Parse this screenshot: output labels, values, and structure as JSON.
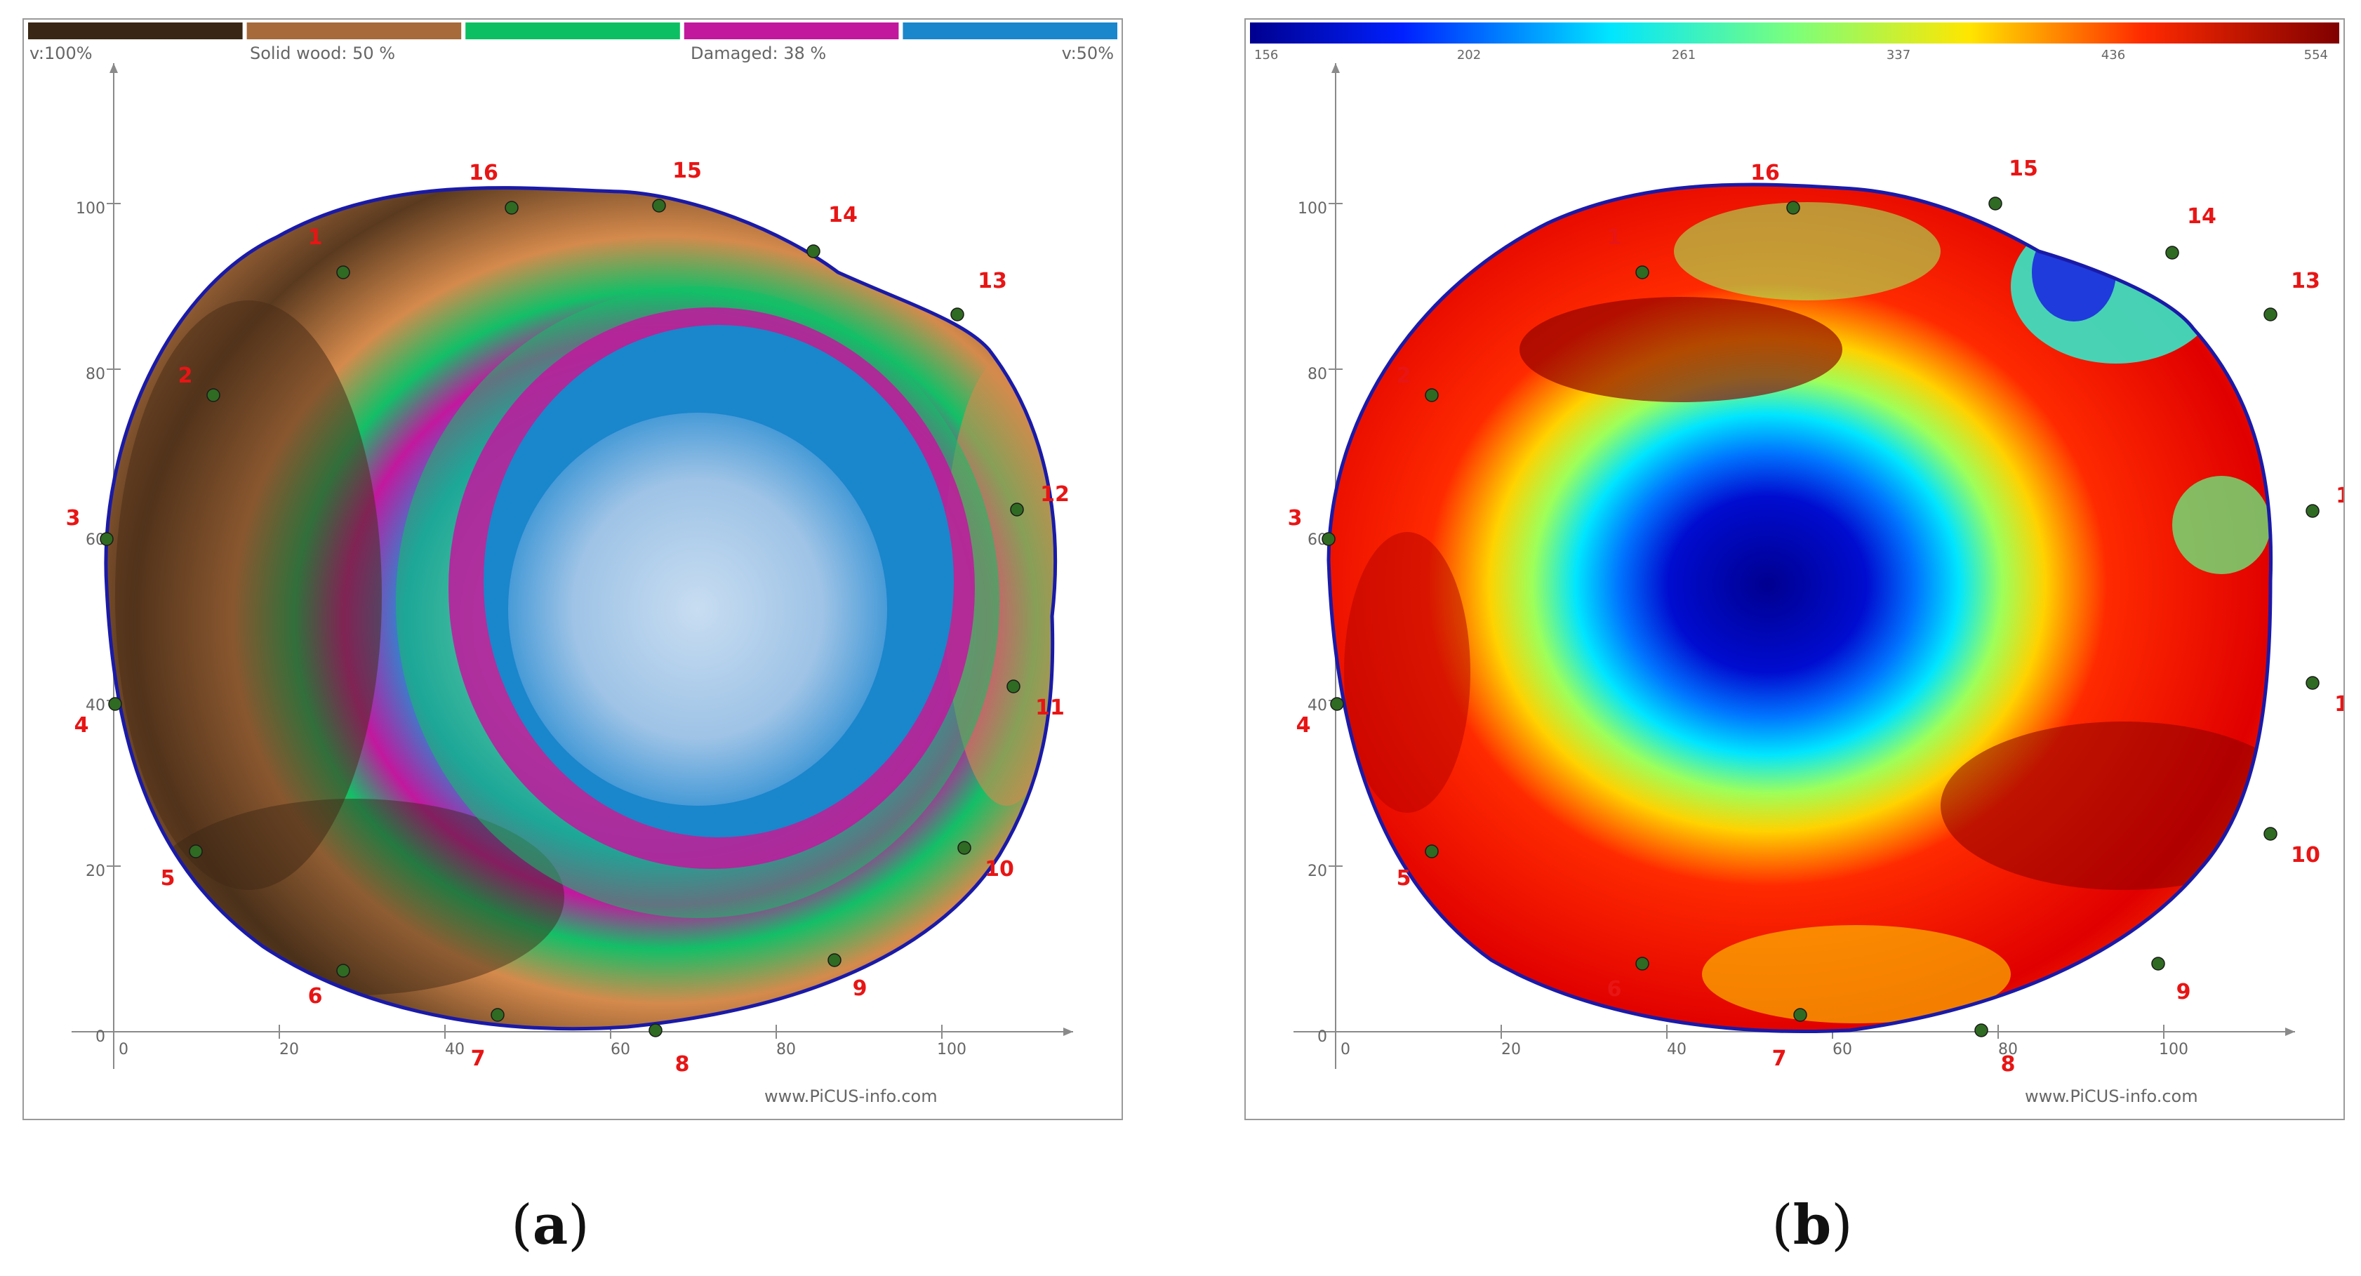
{
  "panels": {
    "a": {
      "legend_colors": [
        "#3a2614",
        "#a66a3b",
        "#0cbf62",
        "#c2189e",
        "#1a86cc"
      ],
      "legend_left": "v:100%",
      "legend_solid": "Solid wood: 50 %",
      "legend_damaged": "Damaged: 38 %",
      "legend_right": "v:50%",
      "caption": "(a)",
      "caption_letter": "a"
    },
    "b": {
      "colorscale_ticks": [
        "156",
        "202",
        "261",
        "337",
        "436",
        "554"
      ],
      "caption": "(b)",
      "caption_letter": "b"
    }
  },
  "axis": {
    "x_ticks": [
      "0",
      "20",
      "40",
      "60",
      "80",
      "100"
    ],
    "y_ticks": [
      "0",
      "20",
      "40",
      "60",
      "80",
      "100"
    ]
  },
  "sensors": [
    "1",
    "2",
    "3",
    "4",
    "5",
    "6",
    "7",
    "8",
    "9",
    "10",
    "11",
    "12",
    "13",
    "14",
    "15",
    "16"
  ],
  "watermark": "www.PiCUS-info.com",
  "colors": {
    "outline": "#1a1aa8",
    "sensor_dot": "#2f6b22",
    "sensor_label": "#e81515",
    "axis": "#8a8a8a"
  }
}
